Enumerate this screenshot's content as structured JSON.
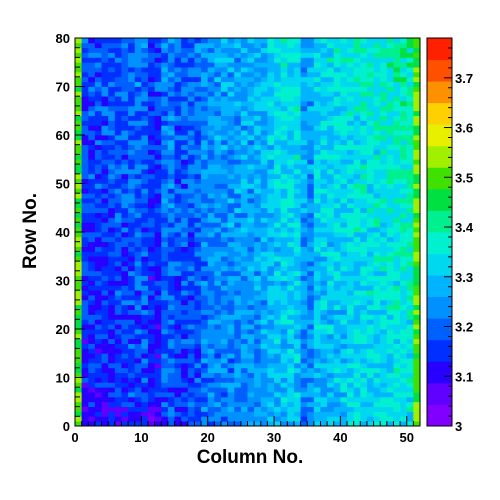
{
  "chart_data": {
    "type": "heatmap",
    "title": "",
    "xlabel": "Column No.",
    "ylabel": "Row No.",
    "xlim": [
      0,
      52
    ],
    "ylim": [
      0,
      80
    ],
    "nx": 52,
    "ny": 80,
    "zlim": [
      3.0,
      3.78
    ],
    "x_ticks": [
      "0",
      "10",
      "20",
      "30",
      "40",
      "50"
    ],
    "y_ticks": [
      "0",
      "10",
      "20",
      "30",
      "40",
      "50",
      "60",
      "70",
      "80"
    ],
    "z_ticks": [
      "3",
      "3.1",
      "3.2",
      "3.3",
      "3.4",
      "3.5",
      "3.6",
      "3.7"
    ],
    "grid": false,
    "trend": {
      "description": "cell values rise from ~3.1 at low column/row to ~3.35 at high column; border columns 0 and 51 near 3.5; dark vertical bands near columns 11-12 and 15-18, bright bands near 29-34",
      "base": 3.12,
      "col_slope": 0.0045,
      "row_slope": 0.0006,
      "edge_columns": [
        0,
        51
      ],
      "edge_value": 3.5,
      "band_offsets": [
        {
          "cols": [
            11,
            12
          ],
          "delta": -0.05
        },
        {
          "cols": [
            15,
            16,
            17,
            18
          ],
          "delta": -0.04
        },
        {
          "cols": [
            29,
            30,
            31,
            32,
            33
          ],
          "delta": 0.03
        },
        {
          "cols": [
            34,
            35
          ],
          "delta": -0.05
        }
      ],
      "noise": 0.06
    },
    "palette": [
      "#8000ff",
      "#6000ff",
      "#2800ff",
      "#0030ff",
      "#0060ff",
      "#0090ff",
      "#00b4ff",
      "#00d8f0",
      "#00f0d0",
      "#00f090",
      "#00e040",
      "#40e000",
      "#a0f000",
      "#e8f000",
      "#ffd000",
      "#ff9000",
      "#ff5000",
      "#ff2000"
    ]
  }
}
